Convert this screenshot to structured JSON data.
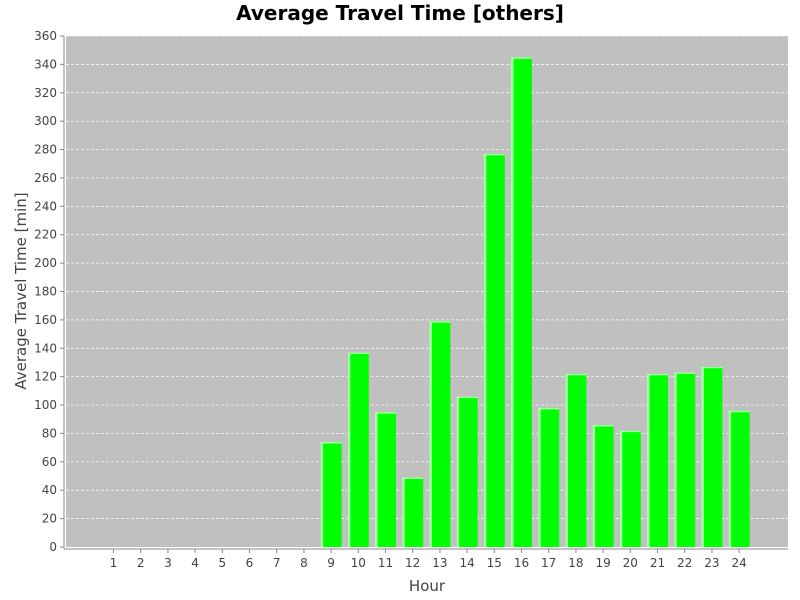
{
  "chart_data": {
    "type": "bar",
    "title": "Average Travel Time [others]",
    "xlabel": "Hour",
    "ylabel": "Average Travel Time [min]",
    "categories": [
      "1",
      "2",
      "3",
      "4",
      "5",
      "6",
      "7",
      "8",
      "9",
      "10",
      "11",
      "12",
      "13",
      "14",
      "15",
      "16",
      "17",
      "18",
      "19",
      "20",
      "21",
      "22",
      "23",
      "24"
    ],
    "values": [
      0,
      0,
      0,
      0,
      0,
      0,
      0,
      0,
      74,
      137,
      95,
      49,
      159,
      106,
      277,
      345,
      98,
      122,
      86,
      82,
      122,
      123,
      127,
      96
    ],
    "ylim": [
      0,
      360
    ],
    "yticks": [
      "0",
      "20",
      "40",
      "60",
      "80",
      "100",
      "120",
      "140",
      "160",
      "180",
      "200",
      "220",
      "240",
      "260",
      "280",
      "300",
      "320",
      "340",
      "360"
    ],
    "grid": true,
    "legend": "none",
    "colors": {
      "bar": "#00ff00",
      "bar_highlight": "#a8ffa8",
      "plot_background": "#c0c0c0",
      "gridline": "#ffffff"
    }
  }
}
